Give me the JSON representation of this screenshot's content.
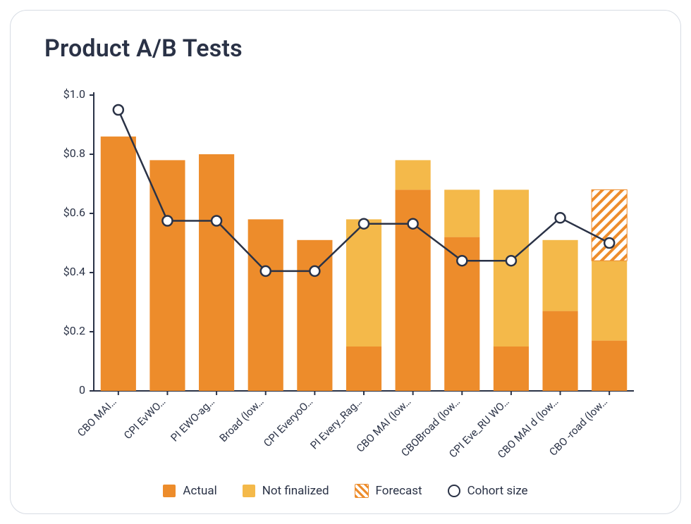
{
  "title": "Product A/B Tests",
  "chart": {
    "type": "stacked-bar-with-line",
    "background_color": "#ffffff",
    "border_color": "#d7dce4",
    "axis_color": "#2a3246",
    "ylim": [
      0,
      1.0
    ],
    "yticks": [
      0,
      0.2,
      0.4,
      0.6,
      0.8,
      1.0
    ],
    "ytick_labels": [
      "0",
      "$0.2",
      "$0.4",
      "$0.6",
      "$0.8",
      "$1.0"
    ],
    "ytick_fontsize": 16,
    "xtick_fontsize": 15,
    "bar_width_ratio": 0.72,
    "colors": {
      "actual": "#ed8c2b",
      "not_finalized": "#f4b94a",
      "forecast_stroke": "#ed8c2b",
      "line": "#2a3246",
      "marker_fill": "#ffffff",
      "marker_stroke": "#2a3246",
      "tick": "#2a3246",
      "text": "#2a3246"
    },
    "line_width": 2.5,
    "marker_radius": 7,
    "marker_stroke_width": 2.5,
    "categories": [
      "CBO MAI…",
      "CPI EvWO…",
      "PI EWO-ag…",
      "Broad (low…",
      "CPI EveryoO…",
      "PI Every_Rag…",
      "CBO MAI (low…",
      "CBOBroad (low…",
      "CPI Eve_RU WO…",
      "CBO MAI d (low…",
      "CBO -road (low…"
    ],
    "series": {
      "actual": [
        0.86,
        0.78,
        0.8,
        0.58,
        0.51,
        0.15,
        0.68,
        0.52,
        0.15,
        0.27,
        0.17
      ],
      "not_finalized": [
        0.0,
        0.0,
        0.0,
        0.0,
        0.0,
        0.43,
        0.1,
        0.16,
        0.53,
        0.24,
        0.27
      ],
      "forecast": [
        0.0,
        0.0,
        0.0,
        0.0,
        0.0,
        0.0,
        0.0,
        0.0,
        0.0,
        0.0,
        0.24
      ],
      "cohort_size": [
        0.95,
        0.575,
        0.575,
        0.405,
        0.405,
        0.565,
        0.565,
        0.44,
        0.44,
        0.585,
        0.5
      ]
    },
    "legend": {
      "actual": "Actual",
      "not_finalized": "Not finalized",
      "forecast": "Forecast",
      "cohort_size": "Cohort size"
    }
  }
}
